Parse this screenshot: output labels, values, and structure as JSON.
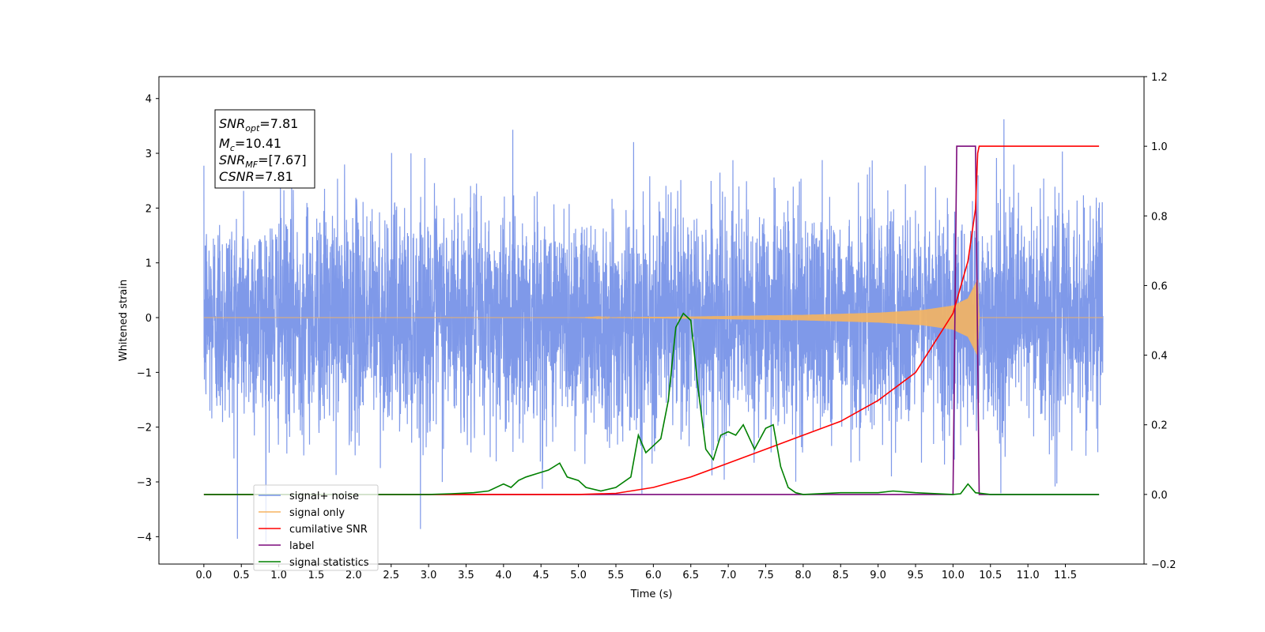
{
  "chart_data": {
    "type": "line",
    "title": "",
    "xlabel": "Time (s)",
    "ylabel": "Whitened strain",
    "xlim": [
      -0.6,
      12.55
    ],
    "ylim": [
      -4.5,
      4.4
    ],
    "ylim_right": [
      -0.2,
      1.2
    ],
    "x_ticks": [
      "0.0",
      "0.5",
      "1.0",
      "1.5",
      "2.0",
      "2.5",
      "3.0",
      "3.5",
      "4.0",
      "4.5",
      "5.0",
      "5.5",
      "6.0",
      "6.5",
      "7.0",
      "7.5",
      "8.0",
      "8.5",
      "9.0",
      "9.5",
      "10.0",
      "10.5",
      "11.0",
      "11.5"
    ],
    "y_ticks": [
      "4",
      "3",
      "2",
      "1",
      "0",
      "−1",
      "−2",
      "−3",
      "−4"
    ],
    "y_ticks_right": [
      "1.2",
      "1.0",
      "0.8",
      "0.6",
      "0.4",
      "0.2",
      "0.0",
      "−0.2"
    ],
    "grid": false,
    "legend_position": "lower-left",
    "info_box": {
      "snr_opt": {
        "base": "SNR",
        "sub": "opt",
        "value": "=7.81"
      },
      "mc": {
        "base": "M",
        "sub": "c",
        "value": "=10.41"
      },
      "snr_mf": {
        "base": "SNR",
        "sub": "MF",
        "value": "=[7.67]"
      },
      "csnr": {
        "base": "CSNR",
        "value": "=7.81"
      }
    },
    "series": [
      {
        "name": "signal+ noise",
        "color": "#7893e8",
        "axis": "left",
        "description_x_range": [
          0.0,
          12.0
        ],
        "amplitude_typical": 1.0,
        "extreme_values": [
          4.0,
          -4.1
        ]
      },
      {
        "name": "signal only",
        "color": "#f5b461",
        "axis": "left",
        "envelope": {
          "x": [
            0.0,
            5.0,
            6.5,
            8.0,
            9.0,
            9.6,
            10.0,
            10.2,
            10.33,
            10.35,
            12.0
          ],
          "amp": [
            0.0,
            0.0,
            0.02,
            0.05,
            0.09,
            0.14,
            0.22,
            0.35,
            0.7,
            0.0,
            0.0
          ]
        }
      },
      {
        "name": "cumilative SNR",
        "color": "#ff0000",
        "axis": "right",
        "x": [
          0.0,
          5.0,
          5.5,
          6.0,
          6.5,
          7.0,
          7.5,
          8.0,
          8.5,
          9.0,
          9.5,
          10.0,
          10.2,
          10.3,
          10.33,
          10.35,
          11.95
        ],
        "y": [
          0.0,
          0.0,
          0.003,
          0.02,
          0.05,
          0.09,
          0.13,
          0.17,
          0.21,
          0.27,
          0.35,
          0.52,
          0.67,
          0.82,
          0.98,
          1.0,
          1.0
        ]
      },
      {
        "name": "label",
        "color": "#7b0a7b",
        "axis": "right",
        "x": [
          0.0,
          10.0,
          10.05,
          10.3,
          10.35,
          11.95
        ],
        "y": [
          0.0,
          0.0,
          1.0,
          1.0,
          0.0,
          0.0
        ]
      },
      {
        "name": "signal statistics",
        "color": "#008000",
        "axis": "right",
        "x": [
          0.0,
          3.0,
          3.3,
          3.6,
          3.8,
          4.0,
          4.1,
          4.2,
          4.3,
          4.45,
          4.6,
          4.75,
          4.85,
          5.0,
          5.1,
          5.3,
          5.5,
          5.7,
          5.8,
          5.9,
          6.0,
          6.1,
          6.2,
          6.3,
          6.4,
          6.5,
          6.6,
          6.7,
          6.8,
          6.9,
          7.0,
          7.1,
          7.2,
          7.35,
          7.5,
          7.6,
          7.7,
          7.8,
          7.9,
          8.0,
          8.5,
          9.0,
          9.2,
          9.5,
          10.0,
          10.1,
          10.2,
          10.3,
          10.5,
          11.0,
          11.5,
          11.95
        ],
        "y": [
          0.0,
          0.0,
          0.002,
          0.005,
          0.01,
          0.03,
          0.02,
          0.04,
          0.05,
          0.06,
          0.07,
          0.09,
          0.05,
          0.04,
          0.02,
          0.01,
          0.02,
          0.05,
          0.17,
          0.12,
          0.14,
          0.16,
          0.27,
          0.48,
          0.52,
          0.5,
          0.3,
          0.13,
          0.1,
          0.17,
          0.18,
          0.17,
          0.2,
          0.13,
          0.19,
          0.2,
          0.08,
          0.02,
          0.005,
          0.0,
          0.005,
          0.005,
          0.01,
          0.005,
          0.0,
          0.002,
          0.03,
          0.005,
          0.0,
          0.0,
          0.0,
          0.0
        ]
      }
    ]
  }
}
